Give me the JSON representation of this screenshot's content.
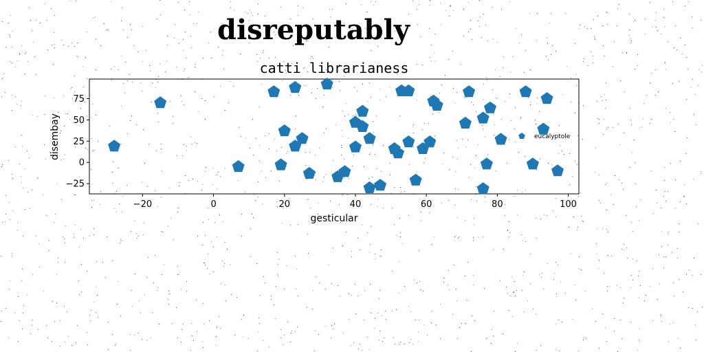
{
  "chart_data": {
    "type": "scatter",
    "title": "disreputably",
    "subtitle": "catti librarianess",
    "xlabel": "gesticular",
    "ylabel": "disembay",
    "xlim": [
      -35,
      103
    ],
    "ylim": [
      -37,
      98
    ],
    "xticks": [
      -20,
      0,
      20,
      40,
      60,
      80,
      100
    ],
    "yticks": [
      -25,
      0,
      25,
      50,
      75
    ],
    "marker": "pentagon",
    "grid": false,
    "legend_position": "right",
    "series": [
      {
        "name": "eucalyptole",
        "color": "#1f77b4",
        "points": [
          {
            "x": -28,
            "y": 19
          },
          {
            "x": -15,
            "y": 70
          },
          {
            "x": 7,
            "y": -5
          },
          {
            "x": 17,
            "y": 83
          },
          {
            "x": 19,
            "y": -3
          },
          {
            "x": 20,
            "y": 37
          },
          {
            "x": 23,
            "y": 19
          },
          {
            "x": 23,
            "y": 88
          },
          {
            "x": 25,
            "y": 28
          },
          {
            "x": 27,
            "y": -13
          },
          {
            "x": 32,
            "y": 92
          },
          {
            "x": 35,
            "y": -17
          },
          {
            "x": 37,
            "y": -11
          },
          {
            "x": 40,
            "y": 47
          },
          {
            "x": 40,
            "y": 18
          },
          {
            "x": 42,
            "y": 60
          },
          {
            "x": 42,
            "y": 42
          },
          {
            "x": 44,
            "y": 28
          },
          {
            "x": 44,
            "y": -30
          },
          {
            "x": 47,
            "y": -27
          },
          {
            "x": 51,
            "y": 16
          },
          {
            "x": 52,
            "y": 11
          },
          {
            "x": 53,
            "y": 84
          },
          {
            "x": 55,
            "y": 84
          },
          {
            "x": 55,
            "y": 24
          },
          {
            "x": 57,
            "y": -21
          },
          {
            "x": 59,
            "y": 16
          },
          {
            "x": 61,
            "y": 24
          },
          {
            "x": 62,
            "y": 72
          },
          {
            "x": 63,
            "y": 67
          },
          {
            "x": 71,
            "y": 46
          },
          {
            "x": 72,
            "y": 83
          },
          {
            "x": 76,
            "y": 52
          },
          {
            "x": 76,
            "y": -31
          },
          {
            "x": 77,
            "y": -2
          },
          {
            "x": 78,
            "y": 64
          },
          {
            "x": 81,
            "y": 27
          },
          {
            "x": 88,
            "y": 83
          },
          {
            "x": 90,
            "y": -2
          },
          {
            "x": 93,
            "y": 39
          },
          {
            "x": 94,
            "y": 75
          },
          {
            "x": 97,
            "y": -10
          }
        ]
      }
    ]
  }
}
